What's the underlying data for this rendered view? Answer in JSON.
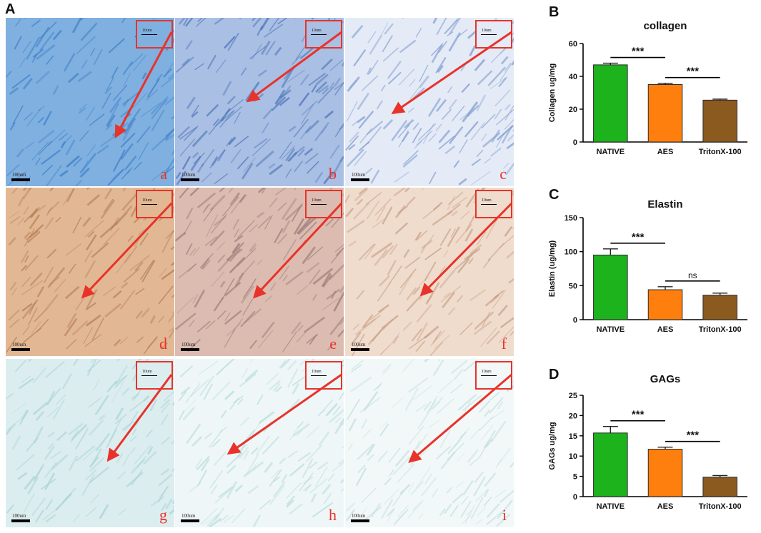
{
  "panel_letters": {
    "a": "A",
    "b": "B",
    "c": "C",
    "d": "D"
  },
  "micrographs": [
    {
      "label": "a",
      "scale_text": "100um",
      "inset_scale_text": "10um",
      "tint": "#3d7fc7",
      "base": "#7fb0e0"
    },
    {
      "label": "b",
      "scale_text": "100um",
      "inset_scale_text": "10um",
      "tint": "#4a72b8",
      "base": "#a9bfe3"
    },
    {
      "label": "c",
      "scale_text": "100um",
      "inset_scale_text": "10um",
      "tint": "#7f9bd0",
      "base": "#e4ebf6"
    },
    {
      "label": "d",
      "scale_text": "100um",
      "inset_scale_text": "10um",
      "tint": "#b57d55",
      "base": "#e2b894"
    },
    {
      "label": "e",
      "scale_text": "100um",
      "inset_scale_text": "10um",
      "tint": "#9a7a78",
      "base": "#dcbcb0"
    },
    {
      "label": "f",
      "scale_text": "100um",
      "inset_scale_text": "10um",
      "tint": "#c69f86",
      "base": "#f0dccd"
    },
    {
      "label": "g",
      "scale_text": "100um",
      "inset_scale_text": "10um",
      "tint": "#a9d4d6",
      "base": "#dcedef"
    },
    {
      "label": "h",
      "scale_text": "100um",
      "inset_scale_text": "10um",
      "tint": "#b8dcde",
      "base": "#eef6f7"
    },
    {
      "label": "i",
      "scale_text": "100um",
      "inset_scale_text": "10um",
      "tint": "#c3dee0",
      "base": "#f2f8f8"
    }
  ],
  "colors": {
    "native": "#1db31d",
    "aes": "#ff7f0e",
    "triton": "#8b5a1e",
    "arrow": "#e8332a",
    "inset_border": "#e8332a"
  },
  "chart_data": [
    {
      "type": "bar",
      "title": "collagen",
      "ylabel": "Collagen ug/mg",
      "categories": [
        "NATIVE",
        "AES",
        "TritonX-100"
      ],
      "values": [
        47,
        35,
        25.5
      ],
      "errors": [
        1.0,
        0.8,
        0.6
      ],
      "ylim": [
        0,
        60
      ],
      "yticks": [
        "0",
        "20",
        "40",
        "60"
      ],
      "significance": [
        {
          "from": 0,
          "to": 1,
          "label": "***"
        },
        {
          "from": 1,
          "to": 2,
          "label": "***"
        }
      ]
    },
    {
      "type": "bar",
      "title": "Elastin",
      "ylabel": "Elastin (ug/mg)",
      "categories": [
        "NATIVE",
        "AES",
        "TritonX-100"
      ],
      "values": [
        95,
        44,
        36
      ],
      "errors": [
        9,
        4.5,
        3
      ],
      "ylim": [
        0,
        150
      ],
      "yticks": [
        "0",
        "50",
        "100",
        "150"
      ],
      "significance": [
        {
          "from": 0,
          "to": 1,
          "label": "***"
        },
        {
          "from": 1,
          "to": 2,
          "label": "ns"
        }
      ]
    },
    {
      "type": "bar",
      "title": "GAGs",
      "ylabel": "GAGs ug/mg",
      "categories": [
        "NATIVE",
        "AES",
        "TritonX-100"
      ],
      "values": [
        15.7,
        11.7,
        4.8
      ],
      "errors": [
        1.6,
        0.5,
        0.4
      ],
      "ylim": [
        0,
        25
      ],
      "yticks": [
        "0",
        "5",
        "10",
        "15",
        "20",
        "25"
      ],
      "significance": [
        {
          "from": 0,
          "to": 1,
          "label": "***"
        },
        {
          "from": 1,
          "to": 2,
          "label": "***"
        }
      ]
    }
  ]
}
